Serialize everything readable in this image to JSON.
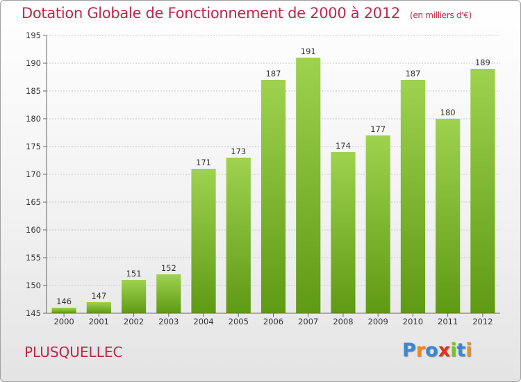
{
  "header": {
    "title": "Dotation Globale de Fonctionnement de 2000 à 2012",
    "unit": "(en milliers d'€)"
  },
  "commune": "PLUSQUELLEC",
  "logo": {
    "text": "Proxiti",
    "letters": [
      "P",
      "r",
      "o",
      "x",
      "i",
      "t",
      "i"
    ],
    "colors": [
      "#3a86d4",
      "#f08a1c",
      "#3a86d4",
      "#e0301e",
      "#7cbf2a",
      "#3a86d4",
      "#f08a1c"
    ]
  },
  "chart_data": {
    "type": "bar",
    "categories": [
      "2000",
      "2001",
      "2002",
      "2003",
      "2004",
      "2005",
      "2006",
      "2007",
      "2008",
      "2009",
      "2010",
      "2011",
      "2012"
    ],
    "values": [
      146,
      147,
      151,
      152,
      171,
      173,
      187,
      191,
      174,
      177,
      187,
      180,
      189
    ],
    "title": "Dotation Globale de Fonctionnement de 2000 à 2012",
    "xlabel": "",
    "ylabel": "",
    "ylim": [
      145,
      195
    ],
    "yticks": [
      145,
      150,
      155,
      160,
      165,
      170,
      175,
      180,
      185,
      190,
      195
    ],
    "grid": true,
    "bar_color_top": "#9ed24f",
    "bar_color_bottom": "#5f9a14"
  }
}
